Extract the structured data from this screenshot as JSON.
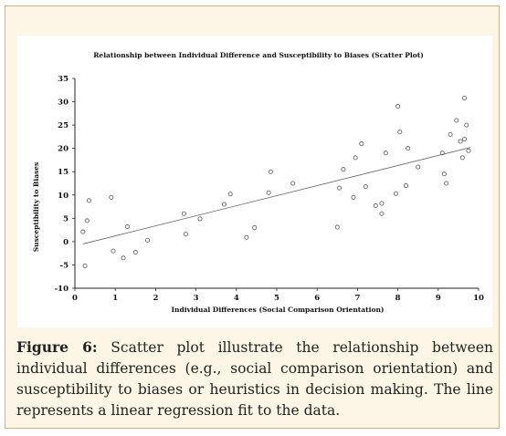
{
  "chart_data": {
    "type": "scatter",
    "title": "Relationship between Individual Difference and Susceptibility to Biases (Scatter Plot)",
    "xlabel": "Individual Differences (Social Comparison Orientation)",
    "ylabel": "Susceptibility to Biases",
    "xlim": [
      0,
      10
    ],
    "ylim": [
      -10,
      35
    ],
    "xticks": [
      0,
      1,
      2,
      3,
      4,
      5,
      6,
      7,
      8,
      9,
      10
    ],
    "yticks": [
      -10,
      -5,
      0,
      5,
      10,
      15,
      20,
      25,
      30,
      35
    ],
    "grid": false,
    "points": [
      {
        "x": 0.2,
        "y": 2.1
      },
      {
        "x": 0.25,
        "y": -5.2
      },
      {
        "x": 0.3,
        "y": 4.5
      },
      {
        "x": 0.35,
        "y": 8.8
      },
      {
        "x": 0.9,
        "y": 9.5
      },
      {
        "x": 0.95,
        "y": -2.0
      },
      {
        "x": 1.2,
        "y": -3.5
      },
      {
        "x": 1.3,
        "y": 3.2
      },
      {
        "x": 1.5,
        "y": -2.3
      },
      {
        "x": 1.8,
        "y": 0.3
      },
      {
        "x": 2.7,
        "y": 6.0
      },
      {
        "x": 2.75,
        "y": 1.6
      },
      {
        "x": 3.1,
        "y": 4.9
      },
      {
        "x": 3.7,
        "y": 8.0
      },
      {
        "x": 3.85,
        "y": 10.2
      },
      {
        "x": 4.25,
        "y": 0.9
      },
      {
        "x": 4.45,
        "y": 3.0
      },
      {
        "x": 4.8,
        "y": 10.5
      },
      {
        "x": 4.85,
        "y": 15.0
      },
      {
        "x": 5.4,
        "y": 12.5
      },
      {
        "x": 6.5,
        "y": 3.1
      },
      {
        "x": 6.55,
        "y": 11.5
      },
      {
        "x": 6.65,
        "y": 15.5
      },
      {
        "x": 6.9,
        "y": 9.5
      },
      {
        "x": 6.95,
        "y": 18.0
      },
      {
        "x": 7.1,
        "y": 21.0
      },
      {
        "x": 7.2,
        "y": 11.8
      },
      {
        "x": 7.45,
        "y": 7.7
      },
      {
        "x": 7.6,
        "y": 8.2
      },
      {
        "x": 7.6,
        "y": 6.0
      },
      {
        "x": 7.7,
        "y": 19.0
      },
      {
        "x": 7.95,
        "y": 10.3
      },
      {
        "x": 8.0,
        "y": 29.0
      },
      {
        "x": 8.05,
        "y": 23.5
      },
      {
        "x": 8.2,
        "y": 12.0
      },
      {
        "x": 8.25,
        "y": 20.0
      },
      {
        "x": 8.5,
        "y": 16.0
      },
      {
        "x": 9.1,
        "y": 19.0
      },
      {
        "x": 9.15,
        "y": 14.5
      },
      {
        "x": 9.2,
        "y": 12.5
      },
      {
        "x": 9.3,
        "y": 23.0
      },
      {
        "x": 9.45,
        "y": 26.0
      },
      {
        "x": 9.55,
        "y": 21.5
      },
      {
        "x": 9.6,
        "y": 18.0
      },
      {
        "x": 9.65,
        "y": 30.8
      },
      {
        "x": 9.65,
        "y": 22.0
      },
      {
        "x": 9.7,
        "y": 25.0
      },
      {
        "x": 9.75,
        "y": 19.5
      }
    ],
    "regression_line": {
      "x": [
        0.2,
        9.8
      ],
      "y": [
        -0.5,
        20.2
      ]
    }
  },
  "caption": {
    "label": "Figure 6:",
    "text": "Scatter plot illustrate the relationship between individual differences (e.g., social comparison orientation) and susceptibility to biases or heuristics in decision making. The line represents a linear regression fit to the data."
  },
  "colors": {
    "panel_background": "#fdf6e7",
    "panel_border": "#c9b48a",
    "marker": "#555555",
    "line": "#666666"
  }
}
